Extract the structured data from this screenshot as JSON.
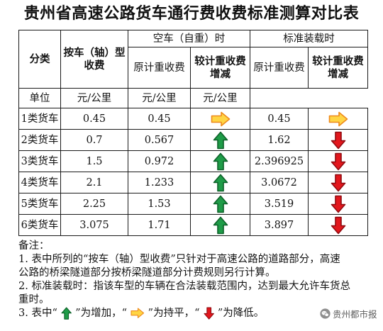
{
  "title": "贵州省高速公路货车通行费收费标准测算对比表",
  "table": {
    "header": {
      "category": "分类",
      "per_axle": "按车（轴）型收费",
      "empty_group": "空车（自重）时",
      "loaded_group": "标准装载时",
      "empty_original": "原计重收费",
      "empty_change": "较计重收费增减",
      "loaded_original": "原计重收费",
      "loaded_change": "较计重收费增减"
    },
    "unit_row": {
      "label": "单位",
      "per_axle": "元/公里",
      "empty_original": "元/公里",
      "loaded_original": "元/公里"
    },
    "rows": [
      {
        "category": "1类货车",
        "per_axle": "0.45",
        "empty_original": "0.45",
        "empty_change": "right-arrow-icon",
        "loaded_original": "0.45",
        "loaded_change": "right-arrow-icon"
      },
      {
        "category": "2类货车",
        "per_axle": "0.7",
        "empty_original": "0.567",
        "empty_change": "up-arrow-icon",
        "loaded_original": "1.62",
        "loaded_change": "down-arrow-icon"
      },
      {
        "category": "3类货车",
        "per_axle": "1.5",
        "empty_original": "0.972",
        "empty_change": "up-arrow-icon",
        "loaded_original": "2.396925",
        "loaded_change": "down-arrow-icon"
      },
      {
        "category": "4类货车",
        "per_axle": "2.1",
        "empty_original": "1.233",
        "empty_change": "up-arrow-icon",
        "loaded_original": "3.0672",
        "loaded_change": "down-arrow-icon"
      },
      {
        "category": "5类货车",
        "per_axle": "2.25",
        "empty_original": "1.53",
        "empty_change": "up-arrow-icon",
        "loaded_original": "3.519",
        "loaded_change": "down-arrow-icon"
      },
      {
        "category": "6类货车",
        "per_axle": "3.075",
        "empty_original": "1.71",
        "empty_change": "up-arrow-icon",
        "loaded_original": "3.897",
        "loaded_change": "down-arrow-icon"
      }
    ]
  },
  "icons": {
    "up-arrow-icon": {
      "fill": "#1f9c48",
      "stroke": "#0d6129"
    },
    "right-arrow-icon": {
      "fill": "#ffd544",
      "stroke": "#ee8a1c"
    },
    "down-arrow-icon": {
      "fill": "#e3171d",
      "stroke": "#8f0b10"
    }
  },
  "notes": {
    "heading": "备注：",
    "items": [
      {
        "lines": [
          "1. 表中所列的“按车（轴）型收费”只针对于高速公路的道路部分，高速",
          "公路的桥梁隧道部分按桥梁隧道部分计费规则另行计算。"
        ]
      },
      {
        "lines": [
          "2. 标准装载时：指该车型的车辆在合法装载范围内，达到最大允许车货总",
          "重时。"
        ]
      }
    ],
    "legend": {
      "lead": "3. 表中“",
      "increase_icon": "up-arrow-icon",
      "increase_text": "”为增加，“",
      "flat_icon": "right-arrow-icon",
      "flat_text": "”为持平，“",
      "decrease_icon": "down-arrow-icon",
      "decrease_text": "”为降低。"
    }
  },
  "watermark": {
    "icon": "wechat-logo-icon",
    "text": "贵州都市报"
  }
}
